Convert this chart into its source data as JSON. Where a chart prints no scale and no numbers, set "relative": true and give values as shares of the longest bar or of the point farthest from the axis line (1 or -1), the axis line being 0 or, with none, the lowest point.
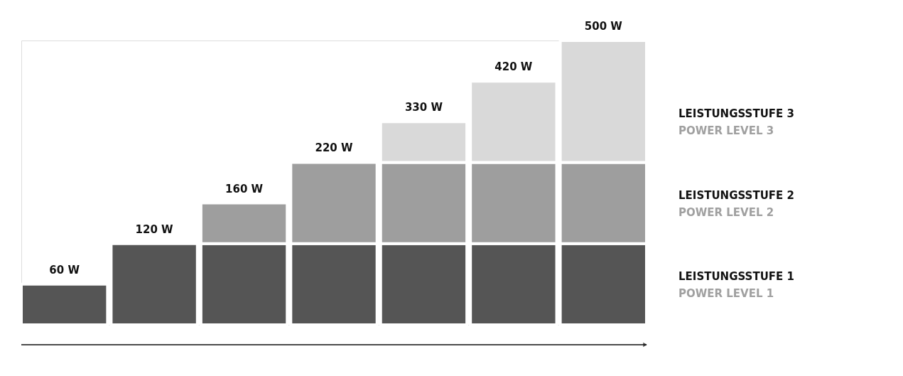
{
  "chart_data": {
    "type": "bar",
    "stacked": true,
    "relative": true,
    "categories": [
      null,
      null,
      null,
      null,
      null,
      null,
      null
    ],
    "series": [
      {
        "name": "LEISTUNGSSTUFE 1\nPOWER LEVEL 1",
        "color": "#555555",
        "values": [
          0.1429,
          0.2857,
          0.2857,
          0.2857,
          0.2857,
          0.2857,
          0.2857
        ]
      },
      {
        "name": "LEISTUNGSSTUFE 2\nPOWER LEVEL 2",
        "color": "#9e9e9e",
        "values": [
          null,
          null,
          0.1429,
          0.2857,
          0.2857,
          0.2857,
          0.2857
        ]
      },
      {
        "name": "LEISTUNGSSTUFE 3\nPOWER LEVEL 3",
        "color": "#d9d9d9",
        "values": [
          null,
          null,
          null,
          null,
          0.1429,
          0.2857,
          0.4286
        ]
      }
    ],
    "annotations": [
      {
        "text": "60 W",
        "y": 0.1429
      },
      {
        "text": "120 W",
        "y": 0.2857
      },
      {
        "text": "160 W",
        "y": 0.4286
      },
      {
        "text": "220 W",
        "y": 0.5714
      },
      {
        "text": "330 W",
        "y": 0.7143
      },
      {
        "text": "420 W",
        "y": 0.8571
      },
      {
        "text": "500 W",
        "y": 1.0
      }
    ]
  }
}
